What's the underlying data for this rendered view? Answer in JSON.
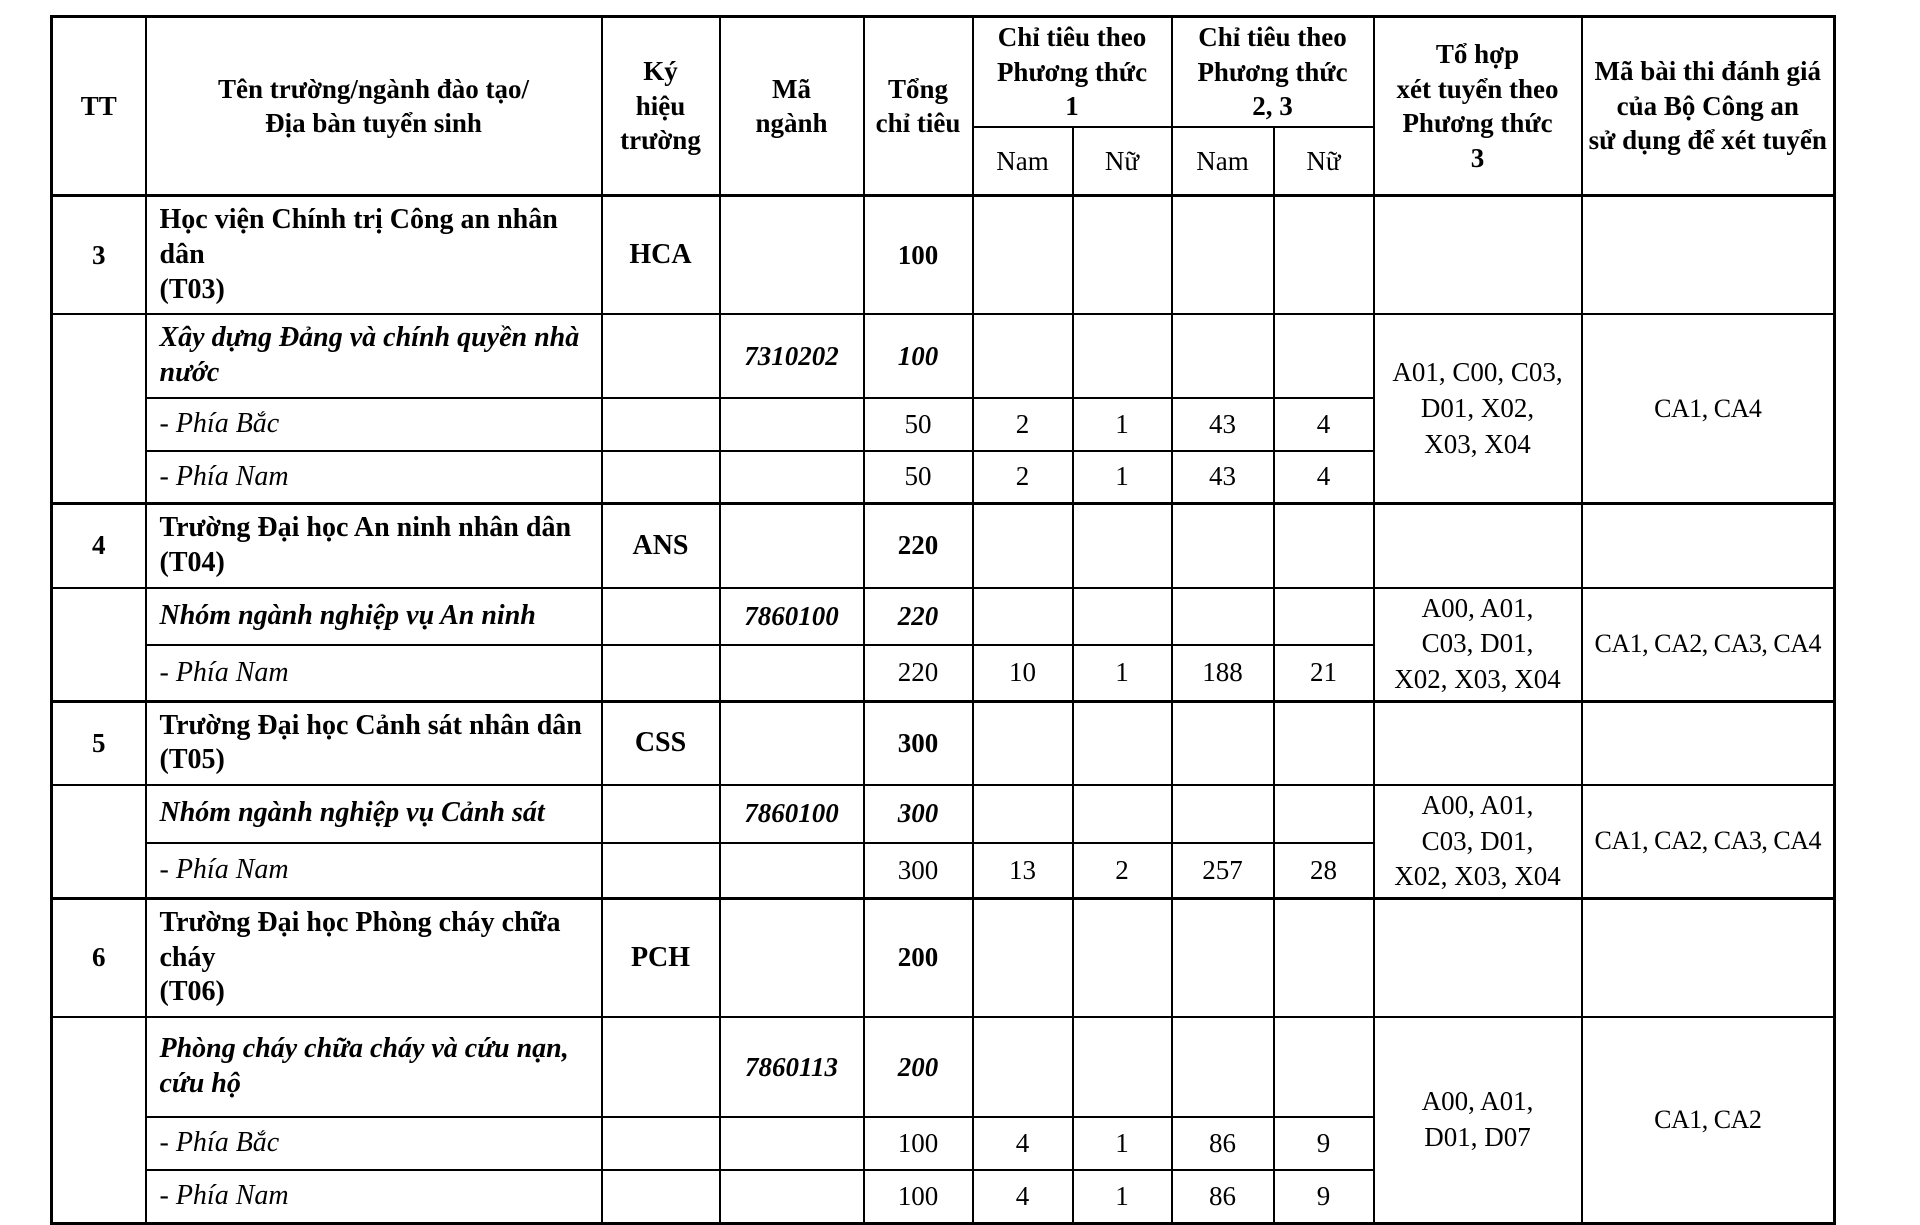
{
  "page": {
    "background": "#ffffff",
    "text_color": "#000000",
    "border_color": "#000000"
  },
  "table": {
    "header": {
      "tt": "TT",
      "name": "Tên trường/ngành đào tạo/\nĐịa bàn tuyển sinh",
      "school_code": "Ký\nhiệu\ntrường",
      "major_code": "Mã\nngành",
      "total": "Tổng\nchỉ tiêu",
      "method1": "Chỉ tiêu theo\nPhương thức\n1",
      "method23": "Chỉ tiêu theo\nPhương thức\n2, 3",
      "male1": "Nam",
      "female1": "Nữ",
      "male2": "Nam",
      "female2": "Nữ",
      "combo": "Tổ hợp\nxét tuyển theo\nPhương thức\n3",
      "exam": "Mã bài thi đánh giá\ncủa Bộ Công an\nsử dụng để xét tuyển"
    },
    "sections": [
      {
        "tt": "3",
        "school_name": "Học viện Chính trị Công an nhân dân\n(T03)",
        "school_code": "HCA",
        "school_total": "100",
        "combo": "A01, C00, C03,\nD01, X02,\nX03, X04",
        "exam": "CA1, CA4",
        "rows": [
          {
            "type": "major",
            "name": "Xây dựng Đảng và chính quyền nhà nước",
            "major_code": "7310202",
            "total": "100",
            "m1_nam": "",
            "m1_nu": "",
            "m23_nam": "",
            "m23_nu": ""
          },
          {
            "type": "region",
            "name": "- Phía Bắc",
            "major_code": "",
            "total": "50",
            "m1_nam": "2",
            "m1_nu": "1",
            "m23_nam": "43",
            "m23_nu": "4"
          },
          {
            "type": "region",
            "name": "- Phía Nam",
            "major_code": "",
            "total": "50",
            "m1_nam": "2",
            "m1_nu": "1",
            "m23_nam": "43",
            "m23_nu": "4"
          }
        ]
      },
      {
        "tt": "4",
        "school_name": "Trường Đại học An ninh nhân dân\n(T04)",
        "school_code": "ANS",
        "school_total": "220",
        "combo": "A00, A01,\nC03, D01,\nX02, X03, X04",
        "exam": "CA1, CA2, CA3, CA4",
        "rows": [
          {
            "type": "major",
            "name": "Nhóm ngành nghiệp vụ An ninh",
            "major_code": "7860100",
            "total": "220",
            "m1_nam": "",
            "m1_nu": "",
            "m23_nam": "",
            "m23_nu": ""
          },
          {
            "type": "region",
            "name": "- Phía Nam",
            "major_code": "",
            "total": "220",
            "m1_nam": "10",
            "m1_nu": "1",
            "m23_nam": "188",
            "m23_nu": "21"
          }
        ]
      },
      {
        "tt": "5",
        "school_name": "Trường Đại học Cảnh sát nhân dân\n(T05)",
        "school_code": "CSS",
        "school_total": "300",
        "combo": "A00, A01,\nC03, D01,\nX02, X03, X04",
        "exam": "CA1, CA2, CA3, CA4",
        "rows": [
          {
            "type": "major",
            "name": "Nhóm ngành nghiệp vụ Cảnh sát",
            "major_code": "7860100",
            "total": "300",
            "m1_nam": "",
            "m1_nu": "",
            "m23_nam": "",
            "m23_nu": ""
          },
          {
            "type": "region",
            "name": "- Phía Nam",
            "major_code": "",
            "total": "300",
            "m1_nam": "13",
            "m1_nu": "2",
            "m23_nam": "257",
            "m23_nu": "28"
          }
        ]
      },
      {
        "tt": "6",
        "school_name": "Trường Đại học Phòng cháy chữa cháy\n(T06)",
        "school_code": "PCH",
        "school_total": "200",
        "combo": "A00, A01,\nD01, D07",
        "exam": "CA1, CA2",
        "rows": [
          {
            "type": "major",
            "name": "Phòng cháy chữa cháy và cứu nạn,\ncứu hộ",
            "major_code": "7860113",
            "total": "200",
            "m1_nam": "",
            "m1_nu": "",
            "m23_nam": "",
            "m23_nu": ""
          },
          {
            "type": "region",
            "name": "- Phía Bắc",
            "major_code": "",
            "total": "100",
            "m1_nam": "4",
            "m1_nu": "1",
            "m23_nam": "86",
            "m23_nu": "9"
          },
          {
            "type": "region",
            "name": "- Phía Nam",
            "major_code": "",
            "total": "100",
            "m1_nam": "4",
            "m1_nu": "1",
            "m23_nam": "86",
            "m23_nu": "9"
          }
        ]
      }
    ]
  }
}
